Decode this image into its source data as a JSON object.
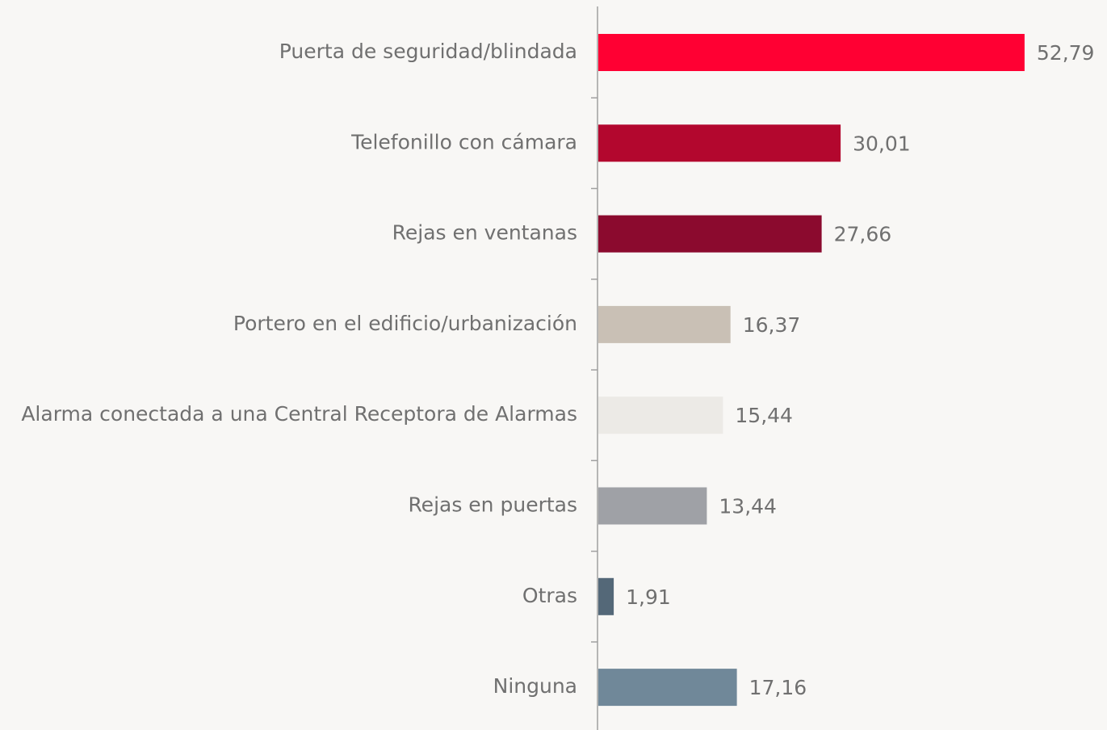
{
  "chart_data": {
    "type": "bar",
    "orientation": "horizontal",
    "categories": [
      "Puerta de seguridad/blindada",
      "Telefonillo con cámara",
      "Rejas en ventanas",
      "Portero en el edificio/urbanización",
      "Alarma conectada a una Central Receptora de Alarmas",
      "Rejas en puertas",
      "Otras",
      "Ninguna"
    ],
    "values": [
      52.79,
      30.01,
      27.66,
      16.37,
      15.44,
      13.44,
      1.91,
      17.16
    ],
    "value_labels": [
      "52,79",
      "30,01",
      "27,66",
      "16,37",
      "15,44",
      "13,44",
      "1,91",
      "17,16"
    ],
    "colors": [
      "#ff0033",
      "#b3072e",
      "#8b0a2e",
      "#c9c0b5",
      "#eceae6",
      "#9fa1a6",
      "#546878",
      "#708899"
    ]
  }
}
